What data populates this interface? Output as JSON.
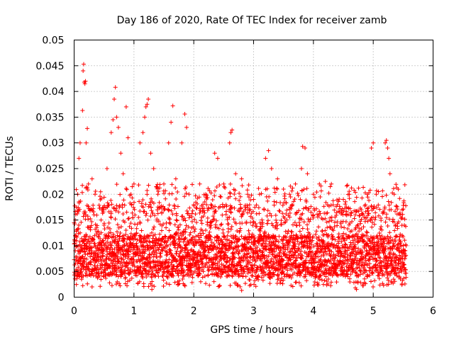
{
  "chart_data": {
    "type": "scatter",
    "title": "Day 186 of 2020, Rate Of TEC Index for receiver zamb",
    "xlabel": "GPS time / hours",
    "ylabel": "ROTI / TECUs",
    "xlim": [
      0,
      6
    ],
    "ylim": [
      0,
      0.05
    ],
    "grid": true,
    "marker": "+",
    "marker_color": "#ff0000",
    "x_ticks": [
      0,
      1,
      2,
      3,
      4,
      5,
      6
    ],
    "x_tick_labels": [
      "0",
      "1",
      "2",
      "3",
      "4",
      "5",
      "6"
    ],
    "y_ticks": [
      0,
      0.005,
      0.01,
      0.015,
      0.02,
      0.025,
      0.03,
      0.035,
      0.04,
      0.045,
      0.05
    ],
    "y_tick_labels": [
      "0",
      "0.005",
      "0.01",
      "0.015",
      "0.02",
      "0.025",
      "0.03",
      "0.035",
      "0.04",
      "0.045",
      "0.05"
    ],
    "series": [
      {
        "name": "ROTI",
        "x_range": [
          0.0,
          5.55
        ],
        "typical_range": [
          0.002,
          0.018
        ],
        "points": [
          [
            0.0,
            0.0145
          ],
          [
            0.02,
            0.015
          ],
          [
            0.04,
            0.011
          ],
          [
            0.06,
            0.02
          ],
          [
            0.08,
            0.027
          ],
          [
            0.1,
            0.03
          ],
          [
            0.12,
            0.005
          ],
          [
            0.14,
            0.0363
          ],
          [
            0.15,
            0.044
          ],
          [
            0.16,
            0.0453
          ],
          [
            0.17,
            0.0418
          ],
          [
            0.18,
            0.0415
          ],
          [
            0.19,
            0.042
          ],
          [
            0.2,
            0.03
          ],
          [
            0.22,
            0.0328
          ],
          [
            0.24,
            0.022
          ],
          [
            0.3,
            0.023
          ],
          [
            0.35,
            0.02
          ],
          [
            0.45,
            0.015
          ],
          [
            0.55,
            0.025
          ],
          [
            0.62,
            0.032
          ],
          [
            0.65,
            0.0345
          ],
          [
            0.67,
            0.0385
          ],
          [
            0.69,
            0.0408
          ],
          [
            0.71,
            0.035
          ],
          [
            0.74,
            0.033
          ],
          [
            0.78,
            0.028
          ],
          [
            0.82,
            0.024
          ],
          [
            0.87,
            0.037
          ],
          [
            0.9,
            0.031
          ],
          [
            0.95,
            0.02
          ],
          [
            1.0,
            0.022
          ],
          [
            1.1,
            0.03
          ],
          [
            1.15,
            0.032
          ],
          [
            1.18,
            0.035
          ],
          [
            1.2,
            0.037
          ],
          [
            1.22,
            0.0375
          ],
          [
            1.24,
            0.0385
          ],
          [
            1.28,
            0.028
          ],
          [
            1.33,
            0.025
          ],
          [
            1.4,
            0.02
          ],
          [
            1.5,
            0.022
          ],
          [
            1.58,
            0.03
          ],
          [
            1.62,
            0.034
          ],
          [
            1.65,
            0.0372
          ],
          [
            1.7,
            0.023
          ],
          [
            1.8,
            0.03
          ],
          [
            1.85,
            0.0356
          ],
          [
            1.88,
            0.033
          ],
          [
            1.92,
            0.02
          ],
          [
            2.0,
            0.018
          ],
          [
            2.1,
            0.022
          ],
          [
            2.2,
            0.02
          ],
          [
            2.35,
            0.028
          ],
          [
            2.4,
            0.027
          ],
          [
            2.5,
            0.022
          ],
          [
            2.6,
            0.03
          ],
          [
            2.62,
            0.032
          ],
          [
            2.64,
            0.0325
          ],
          [
            2.7,
            0.024
          ],
          [
            2.8,
            0.023
          ],
          [
            2.9,
            0.02
          ],
          [
            3.0,
            0.019
          ],
          [
            3.1,
            0.02
          ],
          [
            3.2,
            0.027
          ],
          [
            3.25,
            0.0285
          ],
          [
            3.3,
            0.025
          ],
          [
            3.4,
            0.023
          ],
          [
            3.5,
            0.021
          ],
          [
            3.6,
            0.02
          ],
          [
            3.7,
            0.022
          ],
          [
            3.8,
            0.025
          ],
          [
            3.82,
            0.0293
          ],
          [
            3.86,
            0.029
          ],
          [
            3.9,
            0.024
          ],
          [
            4.0,
            0.02
          ],
          [
            4.1,
            0.022
          ],
          [
            4.2,
            0.0225
          ],
          [
            4.3,
            0.022
          ],
          [
            4.4,
            0.018
          ],
          [
            4.5,
            0.019
          ],
          [
            4.6,
            0.02
          ],
          [
            4.7,
            0.016
          ],
          [
            4.8,
            0.017
          ],
          [
            4.9,
            0.02
          ],
          [
            4.97,
            0.029
          ],
          [
            5.0,
            0.03
          ],
          [
            5.05,
            0.02
          ],
          [
            5.2,
            0.03
          ],
          [
            5.22,
            0.0305
          ],
          [
            5.24,
            0.029
          ],
          [
            5.26,
            0.027
          ],
          [
            5.28,
            0.024
          ],
          [
            5.35,
            0.02
          ],
          [
            5.45,
            0.016
          ],
          [
            5.52,
            0.014
          ],
          [
            5.55,
            0.01
          ],
          [
            0.3,
            0.002
          ],
          [
            1.3,
            0.0015
          ],
          [
            2.8,
            0.0013
          ],
          [
            4.7,
            0.0018
          ],
          [
            4.72,
            0.0015
          ]
        ]
      }
    ]
  }
}
